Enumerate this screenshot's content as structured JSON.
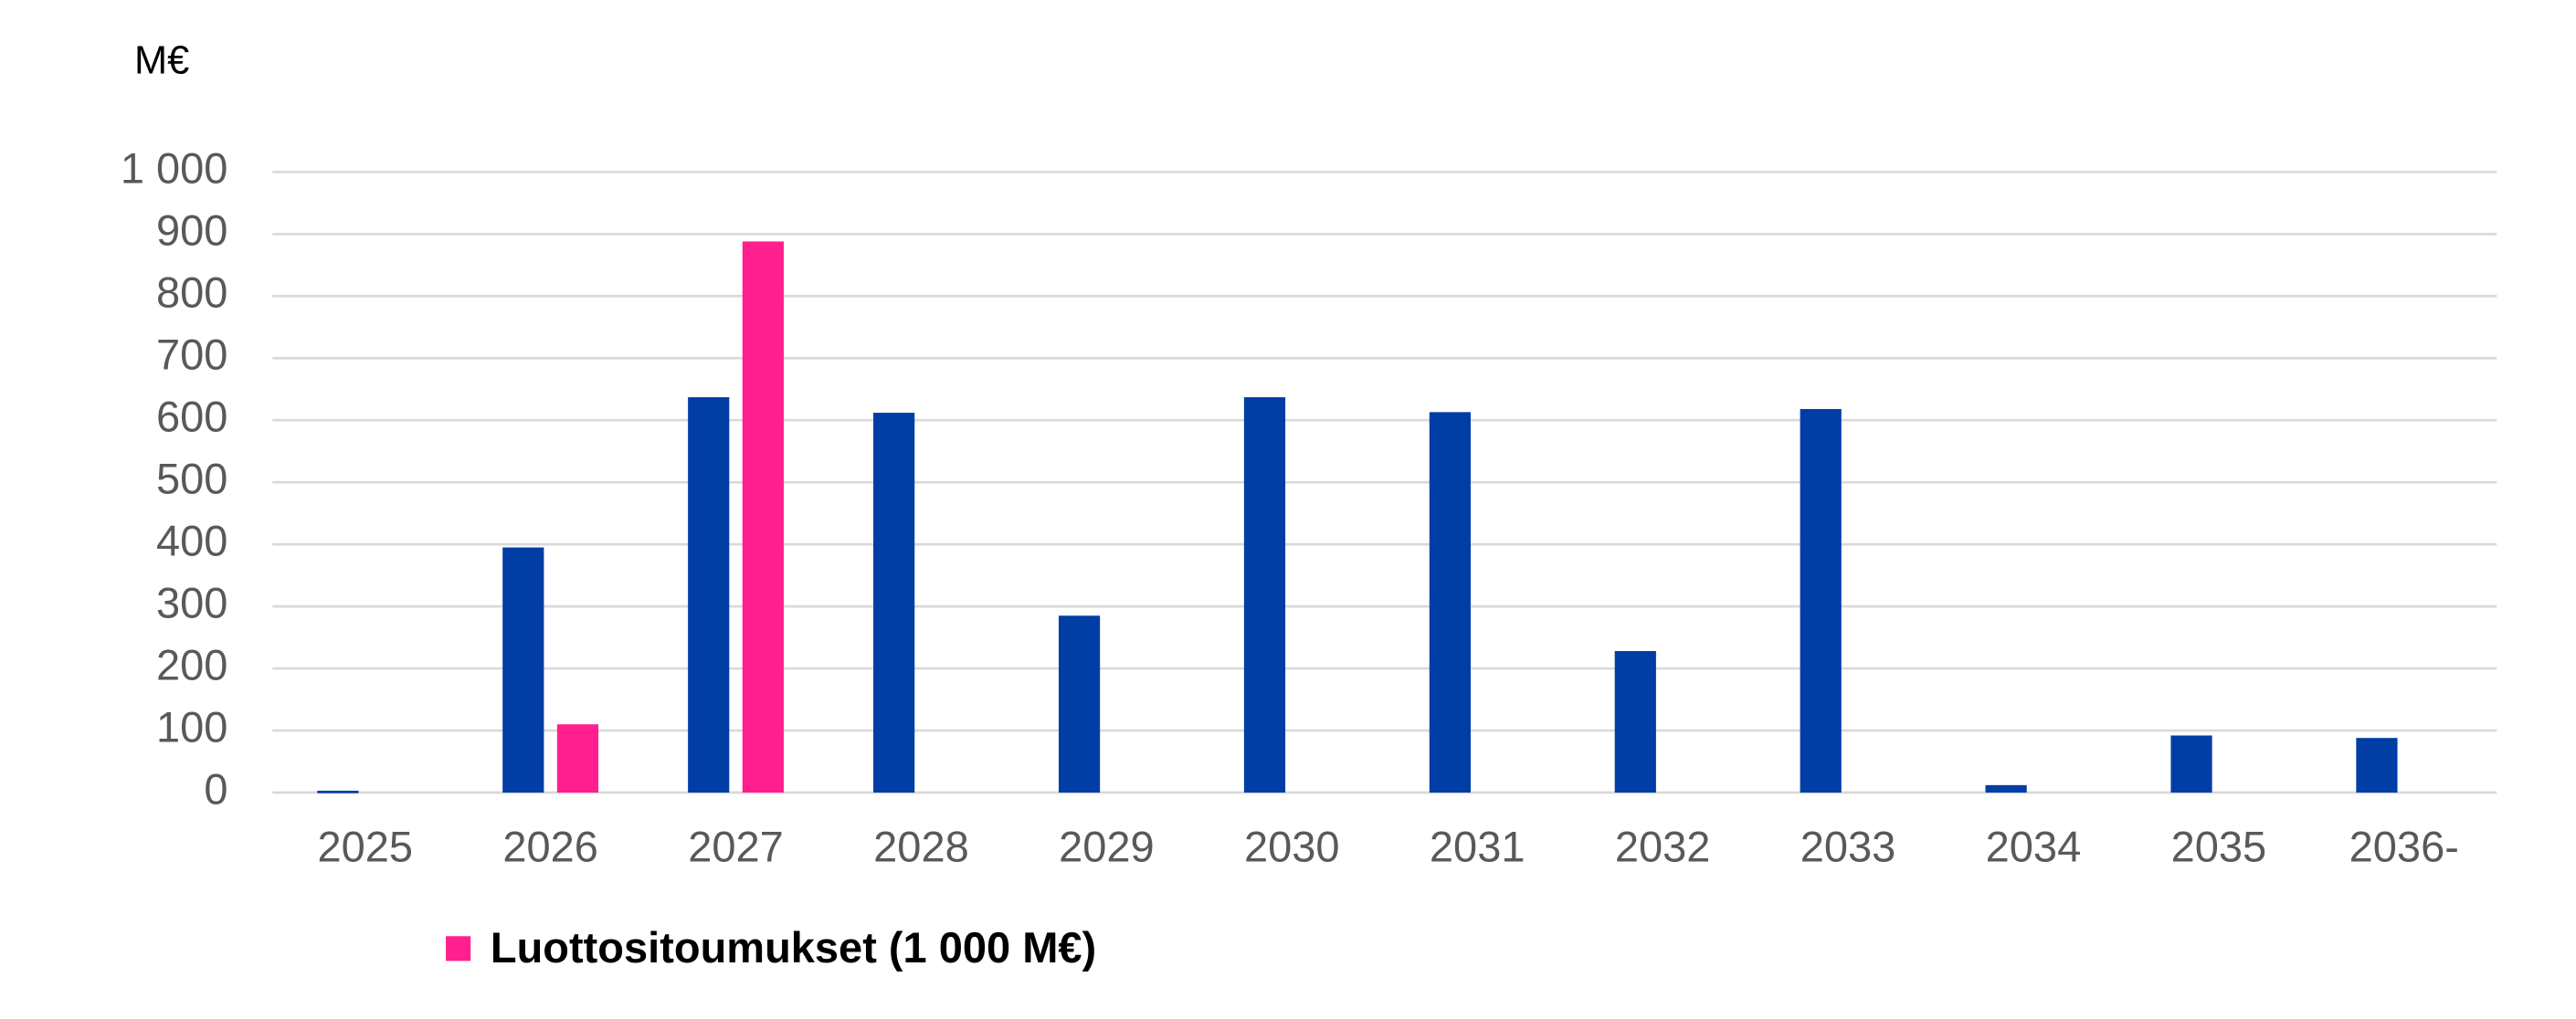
{
  "chart_data": {
    "type": "bar",
    "y_axis_label": "M€",
    "categories": [
      "2025",
      "2026",
      "2027",
      "2028",
      "2029",
      "2030",
      "2031",
      "2032",
      "2033",
      "2034",
      "2035",
      "2036-"
    ],
    "series": [
      {
        "color": "#003da5",
        "values": [
          3,
          395,
          637,
          612,
          285,
          637,
          613,
          228,
          618,
          12,
          92,
          88
        ]
      },
      {
        "name": "Luottositoumukset (1 000 M€)",
        "color": "#ff1f8e",
        "values": [
          null,
          110,
          888,
          null,
          null,
          null,
          null,
          null,
          null,
          null,
          null,
          null
        ]
      }
    ],
    "ylim": [
      0,
      1000
    ],
    "yticks": [
      0,
      100,
      200,
      300,
      400,
      500,
      600,
      700,
      800,
      900,
      {
        "value": 1000,
        "label": "1 000"
      }
    ],
    "grid": true
  }
}
